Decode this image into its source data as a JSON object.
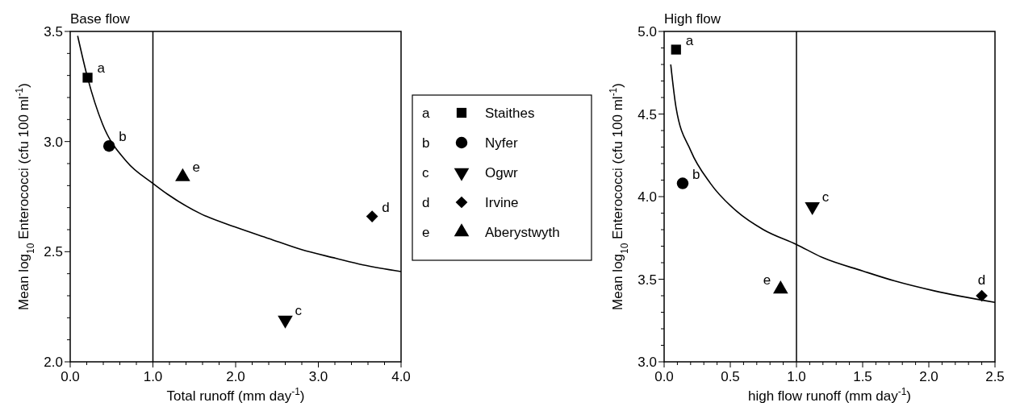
{
  "chart_data": [
    {
      "type": "scatter",
      "title": "Base flow",
      "xlabel": "Total runoff (mm day$^{-1}$)",
      "ylabel": "Mean log$_{10}$ Enterococci (cfu 100 ml$^{-1}$)",
      "xlim": [
        0,
        4
      ],
      "ylim": [
        2,
        3.5
      ],
      "xticks": [
        {
          "value": 0,
          "label": "0.0"
        },
        {
          "value": 0.2,
          "label": null
        },
        {
          "value": 0.4,
          "label": null
        },
        {
          "value": 0.6,
          "label": null
        },
        {
          "value": 0.8,
          "label": null
        },
        {
          "value": 1,
          "label": "1.0"
        },
        {
          "value": 1.2,
          "label": null
        },
        {
          "value": 1.4,
          "label": null
        },
        {
          "value": 1.6,
          "label": null
        },
        {
          "value": 1.8,
          "label": null
        },
        {
          "value": 2,
          "label": "2.0"
        },
        {
          "value": 2.2,
          "label": null
        },
        {
          "value": 2.4,
          "label": null
        },
        {
          "value": 2.6,
          "label": null
        },
        {
          "value": 2.8,
          "label": null
        },
        {
          "value": 3,
          "label": "3.0"
        },
        {
          "value": 3.2,
          "label": null
        },
        {
          "value": 3.4,
          "label": null
        },
        {
          "value": 3.6,
          "label": null
        },
        {
          "value": 3.8,
          "label": null
        },
        {
          "value": 4,
          "label": "4.0"
        }
      ],
      "yticks": [
        {
          "value": 2,
          "label": "2.0"
        },
        {
          "value": 2.1,
          "label": null
        },
        {
          "value": 2.2,
          "label": null
        },
        {
          "value": 2.3,
          "label": null
        },
        {
          "value": 2.4,
          "label": null
        },
        {
          "value": 2.5,
          "label": "2.5"
        },
        {
          "value": 2.6,
          "label": null
        },
        {
          "value": 2.7,
          "label": null
        },
        {
          "value": 2.8,
          "label": null
        },
        {
          "value": 2.9,
          "label": null
        },
        {
          "value": 3,
          "label": "3.0"
        },
        {
          "value": 3.1,
          "label": null
        },
        {
          "value": 3.2,
          "label": null
        },
        {
          "value": 3.3,
          "label": null
        },
        {
          "value": 3.4,
          "label": null
        },
        {
          "value": 3.5,
          "label": "3.5"
        }
      ],
      "series": [
        {
          "name": "Staithes",
          "color": "#000000",
          "marker": "square",
          "x": [
            0.21
          ],
          "values": [
            3.29
          ]
        },
        {
          "name": "Nyfer",
          "color": "#000000",
          "marker": "circle",
          "x": [
            0.47
          ],
          "values": [
            2.98
          ]
        },
        {
          "name": "Ogwr",
          "color": "#000000",
          "marker": "triangle-down",
          "x": [
            2.6
          ],
          "values": [
            2.19
          ]
        },
        {
          "name": "Irvine",
          "color": "#000000",
          "marker": "diamond",
          "x": [
            3.65
          ],
          "values": [
            2.66
          ]
        },
        {
          "name": "Aberystwyth",
          "color": "#000000",
          "marker": "triangle",
          "x": [
            1.36
          ],
          "values": [
            2.84
          ]
        },
        {
          "type": "line",
          "color": "#000000",
          "marker": "none",
          "x": [
            0.09,
            0.21,
            0.39,
            0.68,
            1.0,
            1.18,
            1.59,
            2.01,
            2.4,
            2.79,
            3.21,
            3.54,
            4.0
          ],
          "values": [
            3.48,
            3.29,
            3.08,
            2.91,
            2.81,
            2.76,
            2.67,
            2.61,
            2.56,
            2.51,
            2.47,
            2.44,
            2.41
          ]
        }
      ],
      "annotations": [
        {
          "text": "a",
          "x": 0.21,
          "y": 3.29
        },
        {
          "text": "b",
          "x": 0.47,
          "y": 2.98
        },
        {
          "text": "c",
          "x": 2.6,
          "y": 2.19
        },
        {
          "text": "d",
          "x": 3.65,
          "y": 2.66
        },
        {
          "text": "e",
          "x": 1.36,
          "y": 2.84
        }
      ],
      "ref_lines": [
        {
          "axis": "x",
          "value": 1,
          "color": "#000000"
        }
      ],
      "legend": "right",
      "grid": false
    },
    {
      "type": "scatter",
      "title": "High flow",
      "xlabel": "high flow runoff (mm day$^{-1}$)",
      "ylabel": "Mean log$_{10}$ Enterococci (cfu 100 ml$^{-1}$)",
      "xlim": [
        0,
        2.5
      ],
      "ylim": [
        3,
        5
      ],
      "xticks": [
        {
          "value": 0,
          "label": "0.0"
        },
        {
          "value": 0.1,
          "label": null
        },
        {
          "value": 0.2,
          "label": null
        },
        {
          "value": 0.3,
          "label": null
        },
        {
          "value": 0.4,
          "label": null
        },
        {
          "value": 0.5,
          "label": "0.5"
        },
        {
          "value": 0.6,
          "label": null
        },
        {
          "value": 0.7,
          "label": null
        },
        {
          "value": 0.8,
          "label": null
        },
        {
          "value": 0.9,
          "label": null
        },
        {
          "value": 1,
          "label": "1.0"
        },
        {
          "value": 1.1,
          "label": null
        },
        {
          "value": 1.2,
          "label": null
        },
        {
          "value": 1.3,
          "label": null
        },
        {
          "value": 1.4,
          "label": null
        },
        {
          "value": 1.5,
          "label": "1.5"
        },
        {
          "value": 1.6,
          "label": null
        },
        {
          "value": 1.7,
          "label": null
        },
        {
          "value": 1.8,
          "label": null
        },
        {
          "value": 1.9,
          "label": null
        },
        {
          "value": 2,
          "label": "2.0"
        },
        {
          "value": 2.1,
          "label": null
        },
        {
          "value": 2.2,
          "label": null
        },
        {
          "value": 2.3,
          "label": null
        },
        {
          "value": 2.4,
          "label": null
        },
        {
          "value": 2.5,
          "label": "2.5"
        }
      ],
      "yticks": [
        {
          "value": 3,
          "label": "3.0"
        },
        {
          "value": 3.1,
          "label": null
        },
        {
          "value": 3.2,
          "label": null
        },
        {
          "value": 3.3,
          "label": null
        },
        {
          "value": 3.4,
          "label": null
        },
        {
          "value": 3.5,
          "label": "3.5"
        },
        {
          "value": 3.6,
          "label": null
        },
        {
          "value": 3.7,
          "label": null
        },
        {
          "value": 3.8,
          "label": null
        },
        {
          "value": 3.9,
          "label": null
        },
        {
          "value": 4,
          "label": "4.0"
        },
        {
          "value": 4.1,
          "label": null
        },
        {
          "value": 4.2,
          "label": null
        },
        {
          "value": 4.3,
          "label": null
        },
        {
          "value": 4.4,
          "label": null
        },
        {
          "value": 4.5,
          "label": "4.5"
        },
        {
          "value": 4.6,
          "label": null
        },
        {
          "value": 4.7,
          "label": null
        },
        {
          "value": 4.8,
          "label": null
        },
        {
          "value": 4.9,
          "label": null
        },
        {
          "value": 5,
          "label": "5.0"
        }
      ],
      "series": [
        {
          "color": "#000000",
          "marker": "square",
          "x": [
            0.09
          ],
          "values": [
            4.89
          ]
        },
        {
          "color": "#000000",
          "marker": "circle",
          "x": [
            0.14
          ],
          "values": [
            4.08
          ]
        },
        {
          "color": "#000000",
          "marker": "triangle-down",
          "x": [
            1.12
          ],
          "values": [
            3.94
          ]
        },
        {
          "color": "#000000",
          "marker": "diamond",
          "x": [
            2.4
          ],
          "values": [
            3.4
          ]
        },
        {
          "color": "#000000",
          "marker": "triangle",
          "x": [
            0.88
          ],
          "values": [
            3.44
          ]
        },
        {
          "type": "line",
          "color": "#000000",
          "marker": "none",
          "x": [
            0.05,
            0.09,
            0.2,
            0.35,
            0.55,
            0.75,
            1.0,
            1.2,
            1.5,
            1.74,
            2.04,
            2.5
          ],
          "values": [
            4.8,
            4.54,
            4.28,
            4.08,
            3.91,
            3.8,
            3.71,
            3.63,
            3.55,
            3.49,
            3.43,
            3.36
          ]
        }
      ],
      "annotations": [
        {
          "text": "a",
          "x": 0.09,
          "y": 4.89
        },
        {
          "text": "b",
          "x": 0.14,
          "y": 4.08
        },
        {
          "text": "c",
          "x": 1.12,
          "y": 3.94
        },
        {
          "text": "d",
          "x": 2.4,
          "y": 3.4
        },
        {
          "text": "e",
          "x": 0.88,
          "y": 3.44
        }
      ],
      "ref_lines": [
        {
          "axis": "x",
          "value": 1,
          "color": "#000000"
        }
      ],
      "grid": false
    }
  ]
}
